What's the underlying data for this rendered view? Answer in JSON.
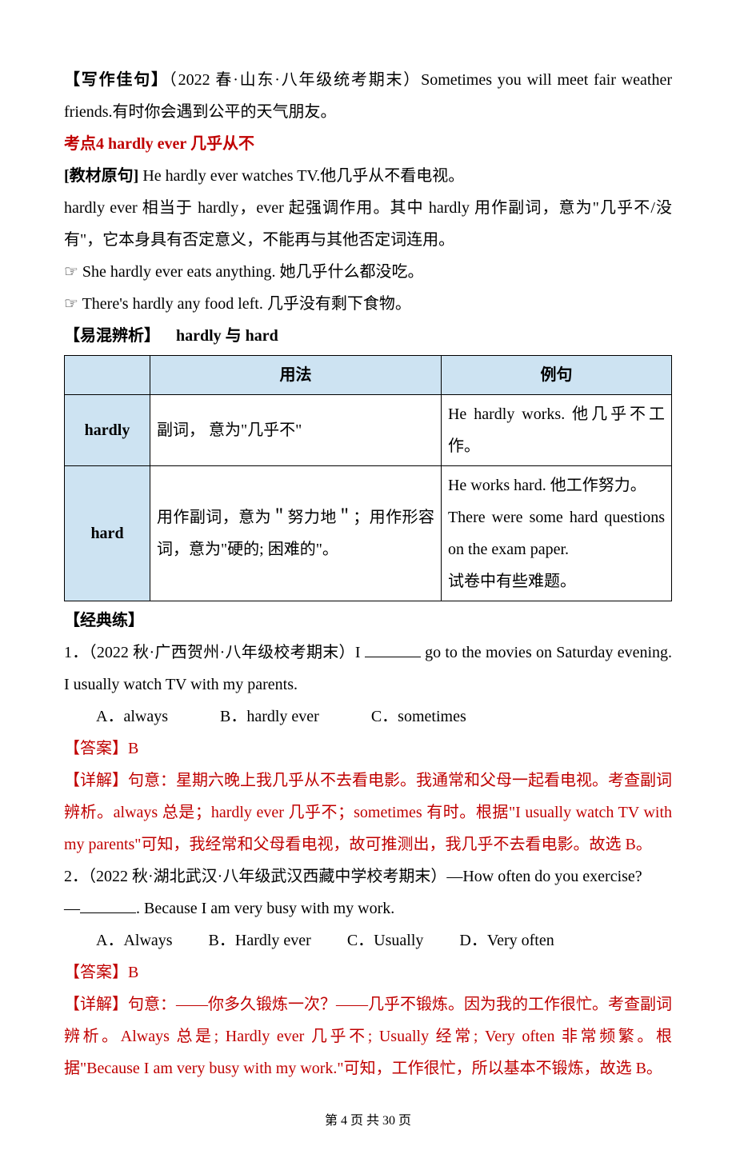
{
  "intro": {
    "tag_label": "【写作佳句】",
    "tag_paren": "（2022 春·山东·八年级统考期末）",
    "sentence": "Sometimes you will meet fair weather friends.有时你会遇到公平的天气朋友。"
  },
  "kp4": {
    "heading": "考点4   hardly ever  几乎从不",
    "orig_label": "[教材原句] ",
    "orig_text": "He hardly ever watches TV.他几乎从不看电视。",
    "expl1": "hardly ever 相当于 hardly，ever 起强调作用。其中 hardly 用作副词，意为\"几乎不/没有\"，它本身具有否定意义，不能再与其他否定词连用。",
    "ex1": "☞ She hardly ever eats anything.  她几乎什么都没吃。",
    "ex2": "☞ There's hardly any food left.  几乎没有剩下食物。",
    "diff_label": "【易混辨析】",
    "diff_title": "hardly 与 hard"
  },
  "table": {
    "head_usage": "用法",
    "head_example": "例句",
    "rows": [
      {
        "term": "hardly",
        "usage": "副词，  意为\"几乎不\"",
        "example": "He hardly works.  他几乎不工作。"
      },
      {
        "term": "hard",
        "usage": "用作副词，意为＂努力地＂；用作形容词，意为\"硬的;  困难的\"。",
        "example": "He works hard.  他工作努力。\nThere were some hard questions on the exam paper.\n试卷中有些难题。"
      }
    ]
  },
  "practice_label": "【经典练】",
  "q1": {
    "stem_pre": "1．（2022 秋·广西贺州·八年级校考期末）I ",
    "stem_post": " go to the movies on Saturday evening. I usually watch TV with my parents.",
    "opts": {
      "A": "A．always",
      "B": "B．hardly ever",
      "C": "C．sometimes"
    },
    "ans_label": "【答案】B",
    "detail": "【详解】句意：星期六晚上我几乎从不去看电影。我通常和父母一起看电视。考查副词辨析。always 总是；hardly ever 几乎不；sometimes 有时。根据\"I usually watch TV with my parents\"可知，我经常和父母看电视，故可推测出，我几乎不去看电影。故选 B。"
  },
  "q2": {
    "stem_line1": "2．（2022 秋·湖北武汉·八年级武汉西藏中学校考期末）—How often do you exercise?",
    "stem_line2_pre": "—",
    "stem_line2_post": ". Because I am very busy with my work.",
    "opts": {
      "A": "A．Always",
      "B": "B．Hardly ever",
      "C": "C．Usually",
      "D": "D．Very often"
    },
    "ans_label": "【答案】B",
    "detail": "【详解】句意：——你多久锻炼一次？——几乎不锻炼。因为我的工作很忙。考查副词辨析。Always 总是;  Hardly ever 几乎不;  Usually 经常;  Very often 非常频繁。根据\"Because I am very busy with my work.\"可知，工作很忙，所以基本不锻炼，故选 B。"
  },
  "footer": {
    "text": "第 4 页 共 30 页"
  },
  "colors": {
    "red": "#c00000",
    "table_header_bg": "#cde3f2",
    "text": "#000000",
    "bg": "#ffffff"
  },
  "fonts": {
    "body_size_pt": 15,
    "footer_size_pt": 12,
    "line_height": 2.0
  }
}
